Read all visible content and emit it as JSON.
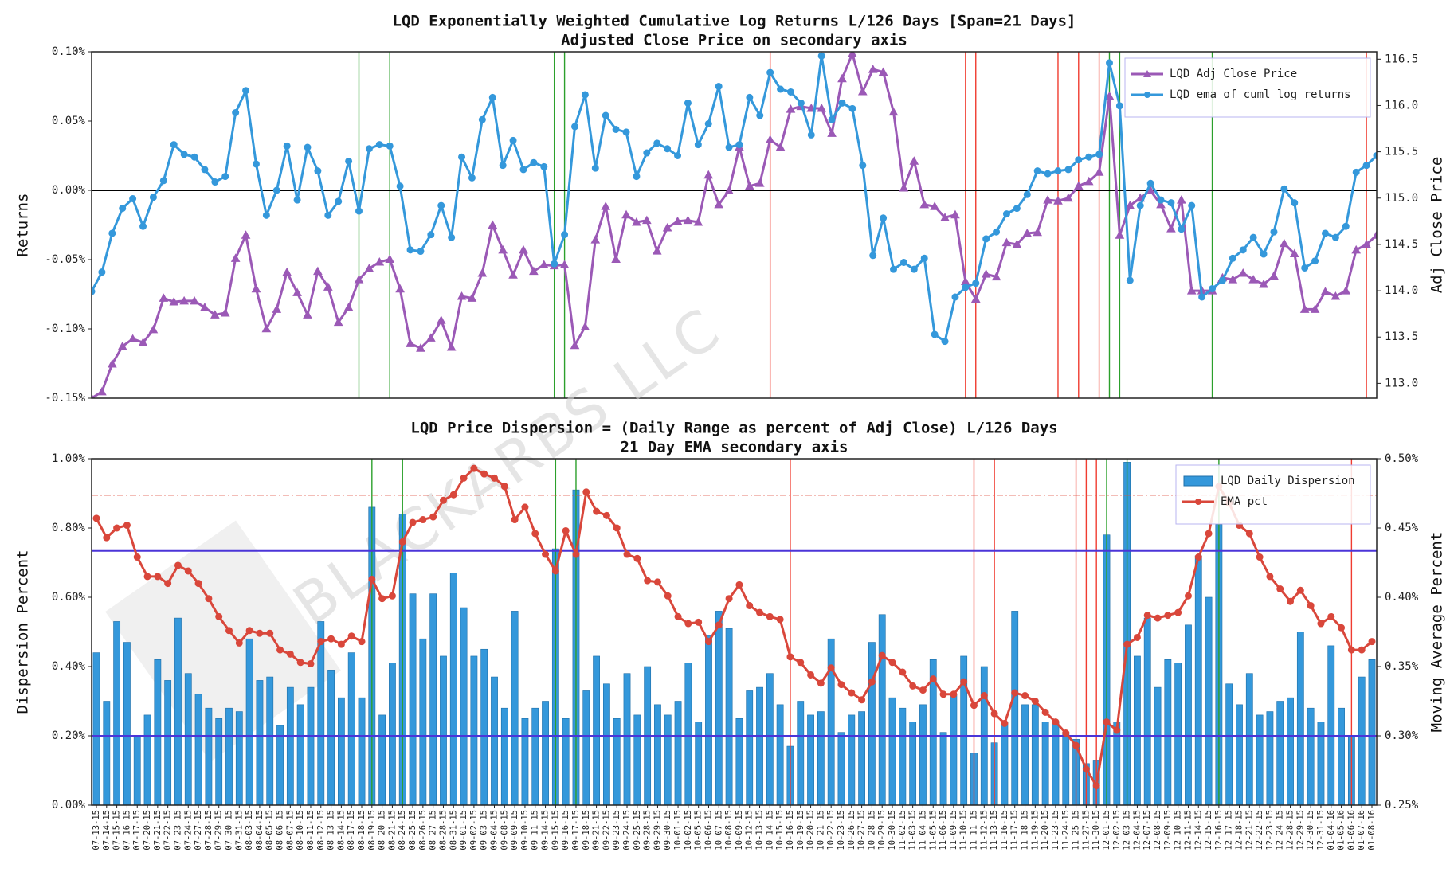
{
  "chart_data": [
    {
      "type": "line",
      "title": "LQD Exponentially Weighted Cumulative Log Returns L/126 Days [Span=21 Days]",
      "subtitle": "Adjusted Close Price on secondary axis",
      "ylabel": "Returns",
      "y2label": "Adj Close Price",
      "ylim": [
        -0.15,
        0.1
      ],
      "yticks": [
        {
          "value": -0.15,
          "label": "-0.15%"
        },
        {
          "value": -0.1,
          "label": "-0.10%"
        },
        {
          "value": -0.05,
          "label": "-0.05%"
        },
        {
          "value": 0,
          "label": "0.00%"
        },
        {
          "value": 0.05,
          "label": "0.05%"
        },
        {
          "value": 0.1,
          "label": "0.10%"
        }
      ],
      "y2lim": [
        112.84,
        116.58
      ],
      "y2ticks": [
        {
          "value": 113,
          "label": "113.0"
        },
        113.5,
        {
          "value": 114,
          "label": "114.0"
        },
        114.5,
        {
          "value": 115,
          "label": "115.0"
        },
        115.5,
        {
          "value": 116,
          "label": "116.0"
        },
        116.5
      ],
      "legend": "upper right",
      "hlines": [
        {
          "value": 0,
          "color": "#000000",
          "axis": "y",
          "style": "solid"
        }
      ],
      "vlines": [
        {
          "color": "#2ca02c",
          "dates": [
            "08-18-15",
            "08-21-15",
            "09-15-15",
            "09-16-15",
            "12-01-15",
            "12-02-15",
            "12-15-15"
          ]
        },
        {
          "color": "#f03c30",
          "dates": [
            "10-14-15",
            "11-10-15",
            "11-11-15",
            "11-23-15",
            "11-25-15",
            "11-30-15",
            "01-07-16"
          ]
        }
      ],
      "series": [
        {
          "name": "LQD Adj Close Price",
          "color": "#9b59b6",
          "kind": "line",
          "marker": "triangle",
          "axis": "y2",
          "values": [
            112.84,
            112.91,
            113.21,
            113.4,
            113.48,
            113.44,
            113.58,
            113.92,
            113.88,
            113.89,
            113.89,
            113.82,
            113.74,
            113.76,
            114.35,
            114.6,
            114.02,
            113.59,
            113.8,
            114.2,
            113.98,
            113.74,
            114.21,
            114.04,
            113.66,
            113.82,
            114.12,
            114.24,
            114.31,
            114.34,
            114.02,
            113.43,
            113.38,
            113.49,
            113.68,
            113.39,
            113.94,
            113.92,
            114.19,
            114.71,
            114.44,
            114.17,
            114.44,
            114.21,
            114.28,
            114.27,
            114.28,
            113.41,
            113.61,
            114.55,
            114.91,
            114.34,
            114.82,
            114.74,
            114.76,
            114.43,
            114.68,
            114.75,
            114.76,
            114.74,
            115.25,
            114.93,
            115.08,
            115.55,
            115.13,
            115.16,
            115.63,
            115.55,
            115.96,
            115.99,
            115.97,
            115.97,
            115.7,
            116.29,
            116.56,
            116.15,
            116.39,
            116.36,
            115.93,
            115.11,
            115.4,
            114.93,
            114.91,
            114.79,
            114.82,
            114.1,
            113.91,
            114.18,
            114.15,
            114.52,
            114.5,
            114.62,
            114.63,
            114.98,
            114.97,
            115.0,
            115.13,
            115.18,
            115.28,
            116.1,
            114.6,
            114.92,
            115.0,
            115.08,
            114.93,
            114.67,
            114.98,
            114.0,
            114.0,
            114.0,
            114.14,
            114.12,
            114.19,
            114.12,
            114.07,
            114.16,
            114.51,
            114.4,
            113.8,
            113.8,
            113.99,
            113.94,
            114.0,
            114.44,
            114.5,
            114.6
          ]
        },
        {
          "name": "LQD ema of cuml log returns",
          "color": "#3498db",
          "kind": "line",
          "marker": "circle",
          "axis": "y",
          "values": [
            -0.073,
            -0.059,
            -0.031,
            -0.013,
            -0.006,
            -0.026,
            -0.005,
            0.007,
            0.033,
            0.026,
            0.024,
            0.015,
            0.006,
            0.01,
            0.056,
            0.072,
            0.019,
            -0.018,
            0.0,
            0.032,
            -0.007,
            0.031,
            0.014,
            -0.018,
            -0.008,
            0.021,
            -0.015,
            0.03,
            0.033,
            0.032,
            0.003,
            -0.043,
            -0.044,
            -0.032,
            -0.011,
            -0.034,
            0.024,
            0.009,
            0.051,
            0.067,
            0.018,
            0.036,
            0.015,
            0.02,
            0.017,
            -0.053,
            -0.032,
            0.046,
            0.069,
            0.016,
            0.054,
            0.044,
            0.042,
            0.01,
            0.027,
            0.034,
            0.03,
            0.025,
            0.063,
            0.033,
            0.048,
            0.075,
            0.031,
            0.033,
            0.067,
            0.054,
            0.085,
            0.073,
            0.071,
            0.063,
            0.04,
            0.097,
            0.051,
            0.063,
            0.059,
            0.018,
            -0.047,
            -0.02,
            -0.057,
            -0.052,
            -0.057,
            -0.049,
            -0.104,
            -0.109,
            -0.077,
            -0.07,
            -0.067,
            -0.035,
            -0.03,
            -0.017,
            -0.013,
            -0.003,
            0.014,
            0.012,
            0.014,
            0.015,
            0.022,
            0.024,
            0.026,
            0.092,
            0.061,
            -0.065,
            -0.011,
            0.005,
            -0.007,
            -0.009,
            -0.028,
            -0.011,
            -0.077,
            -0.071,
            -0.065,
            -0.049,
            -0.043,
            -0.034,
            -0.046,
            -0.03,
            0.001,
            -0.009,
            -0.056,
            -0.051,
            -0.031,
            -0.034,
            -0.026,
            0.013,
            0.018,
            0.025
          ]
        }
      ],
      "watermark": "BLACKARBS LLC"
    },
    {
      "type": "bar",
      "title": "LQD Price Dispersion = (Daily Range as percent of Adj Close) L/126 Days",
      "subtitle": "21 Day EMA secondary axis",
      "ylabel": "Dispersion Percent",
      "y2label": "Moving Average Percent",
      "ylim": [
        0,
        1.0
      ],
      "yticks": [
        {
          "value": 0,
          "label": "0.00%"
        },
        {
          "value": 0.2,
          "label": "0.20%"
        },
        {
          "value": 0.4,
          "label": "0.40%"
        },
        {
          "value": 0.6,
          "label": "0.60%"
        },
        {
          "value": 0.8,
          "label": "0.80%"
        },
        {
          "value": 1.0,
          "label": "1.00%"
        }
      ],
      "y2lim": [
        0.25,
        0.5
      ],
      "y2ticks": [
        {
          "value": 0.25,
          "label": "0.25%"
        },
        {
          "value": 0.3,
          "label": "0.30%"
        },
        {
          "value": 0.35,
          "label": "0.35%"
        },
        {
          "value": 0.4,
          "label": "0.40%"
        },
        {
          "value": 0.45,
          "label": "0.45%"
        },
        {
          "value": 0.5,
          "label": "0.50%"
        }
      ],
      "legend": "upper right",
      "hlines": [
        {
          "value": 0.734,
          "color": "#4b35d8",
          "axis": "y",
          "style": "solid"
        },
        {
          "value": 0.2,
          "color": "#4b35d8",
          "axis": "y",
          "style": "solid"
        },
        {
          "value": 0.895,
          "color": "#e05040",
          "axis": "y",
          "style": "dashdot"
        }
      ],
      "vlines": [
        {
          "color": "#2ca02c",
          "dates": [
            "08-19-15",
            "08-24-15",
            "09-15-15",
            "09-17-15",
            "12-01-15",
            "12-03-15",
            "12-16-15"
          ]
        },
        {
          "color": "#f03c30",
          "dates": [
            "10-16-15",
            "11-11-15",
            "11-13-15",
            "11-25-15",
            "11-27-15",
            "11-30-15",
            "01-06-16"
          ]
        }
      ],
      "categories": [
        "07-13-15",
        "07-14-15",
        "07-15-15",
        "07-16-15",
        "07-17-15",
        "07-20-15",
        "07-21-15",
        "07-22-15",
        "07-23-15",
        "07-24-15",
        "07-27-15",
        "07-28-15",
        "07-29-15",
        "07-30-15",
        "07-31-15",
        "08-03-15",
        "08-04-15",
        "08-05-15",
        "08-06-15",
        "08-07-15",
        "08-10-15",
        "08-11-15",
        "08-12-15",
        "08-13-15",
        "08-14-15",
        "08-17-15",
        "08-18-15",
        "08-19-15",
        "08-20-15",
        "08-21-15",
        "08-24-15",
        "08-25-15",
        "08-26-15",
        "08-27-15",
        "08-28-15",
        "08-31-15",
        "09-01-15",
        "09-02-15",
        "09-03-15",
        "09-04-15",
        "09-08-15",
        "09-09-15",
        "09-10-15",
        "09-11-15",
        "09-14-15",
        "09-15-15",
        "09-16-15",
        "09-17-15",
        "09-18-15",
        "09-21-15",
        "09-22-15",
        "09-23-15",
        "09-24-15",
        "09-25-15",
        "09-28-15",
        "09-29-15",
        "09-30-15",
        "10-01-15",
        "10-02-15",
        "10-05-15",
        "10-06-15",
        "10-07-15",
        "10-08-15",
        "10-09-15",
        "10-12-15",
        "10-13-15",
        "10-14-15",
        "10-15-15",
        "10-16-15",
        "10-19-15",
        "10-20-15",
        "10-21-15",
        "10-22-15",
        "10-23-15",
        "10-26-15",
        "10-27-15",
        "10-28-15",
        "10-29-15",
        "10-30-15",
        "11-02-15",
        "11-03-15",
        "11-04-15",
        "11-05-15",
        "11-06-15",
        "11-09-15",
        "11-10-15",
        "11-11-15",
        "11-12-15",
        "11-13-15",
        "11-16-15",
        "11-17-15",
        "11-18-15",
        "11-19-15",
        "11-20-15",
        "11-23-15",
        "11-24-15",
        "11-25-15",
        "11-27-15",
        "11-30-15",
        "12-01-15",
        "12-02-15",
        "12-03-15",
        "12-04-15",
        "12-07-15",
        "12-08-15",
        "12-09-15",
        "12-10-15",
        "12-11-15",
        "12-14-15",
        "12-15-15",
        "12-16-15",
        "12-17-15",
        "12-18-15",
        "12-21-15",
        "12-22-15",
        "12-23-15",
        "12-24-15",
        "12-28-15",
        "12-29-15",
        "12-30-15",
        "12-31-15",
        "01-04-16",
        "01-05-16",
        "01-06-16",
        "01-07-16",
        "01-08-16"
      ],
      "series": [
        {
          "name": "LQD Daily Dispersion",
          "color": "#3498db",
          "kind": "bar",
          "axis": "y",
          "values": [
            0.44,
            0.3,
            0.53,
            0.47,
            0.2,
            0.26,
            0.42,
            0.36,
            0.54,
            0.38,
            0.32,
            0.28,
            0.25,
            0.28,
            0.27,
            0.48,
            0.36,
            0.37,
            0.23,
            0.34,
            0.29,
            0.34,
            0.53,
            0.39,
            0.31,
            0.44,
            0.31,
            0.86,
            0.26,
            0.41,
            0.84,
            0.61,
            0.48,
            0.61,
            0.43,
            0.67,
            0.57,
            0.43,
            0.45,
            0.37,
            0.28,
            0.56,
            0.25,
            0.28,
            0.3,
            0.74,
            0.25,
            0.91,
            0.33,
            0.43,
            0.35,
            0.25,
            0.38,
            0.26,
            0.4,
            0.29,
            0.26,
            0.3,
            0.41,
            0.24,
            0.49,
            0.56,
            0.51,
            0.25,
            0.33,
            0.34,
            0.38,
            0.29,
            0.17,
            0.3,
            0.26,
            0.27,
            0.48,
            0.21,
            0.26,
            0.27,
            0.47,
            0.55,
            0.31,
            0.28,
            0.24,
            0.29,
            0.42,
            0.21,
            0.32,
            0.43,
            0.15,
            0.4,
            0.18,
            0.24,
            0.56,
            0.29,
            0.29,
            0.24,
            0.24,
            0.21,
            0.19,
            0.12,
            0.13,
            0.78,
            0.24,
            0.99,
            0.43,
            0.54,
            0.34,
            0.42,
            0.41,
            0.52,
            0.72,
            0.6,
            0.81,
            0.35,
            0.29,
            0.38,
            0.26,
            0.27,
            0.3,
            0.31,
            0.5,
            0.28,
            0.24,
            0.46,
            0.28,
            0.2,
            0.37,
            0.42
          ]
        },
        {
          "name": "EMA pct",
          "color": "#d9473b",
          "kind": "line",
          "marker": "circle",
          "axis": "y2",
          "values": [
            0.457,
            0.443,
            0.45,
            0.452,
            0.429,
            0.415,
            0.415,
            0.41,
            0.423,
            0.419,
            0.41,
            0.399,
            0.386,
            0.376,
            0.367,
            0.376,
            0.374,
            0.374,
            0.362,
            0.359,
            0.353,
            0.352,
            0.368,
            0.37,
            0.366,
            0.372,
            0.368,
            0.413,
            0.399,
            0.401,
            0.44,
            0.454,
            0.456,
            0.458,
            0.47,
            0.474,
            0.486,
            0.493,
            0.489,
            0.486,
            0.48,
            0.456,
            0.465,
            0.446,
            0.431,
            0.419,
            0.448,
            0.431,
            0.476,
            0.462,
            0.459,
            0.45,
            0.431,
            0.428,
            0.412,
            0.411,
            0.401,
            0.386,
            0.381,
            0.382,
            0.368,
            0.38,
            0.399,
            0.409,
            0.394,
            0.389,
            0.386,
            0.384,
            0.357,
            0.353,
            0.344,
            0.338,
            0.349,
            0.337,
            0.331,
            0.326,
            0.339,
            0.358,
            0.353,
            0.346,
            0.336,
            0.333,
            0.341,
            0.33,
            0.33,
            0.339,
            0.322,
            0.329,
            0.316,
            0.309,
            0.331,
            0.329,
            0.325,
            0.317,
            0.31,
            0.302,
            0.293,
            0.276,
            0.264,
            0.31,
            0.304,
            0.366,
            0.371,
            0.387,
            0.385,
            0.387,
            0.389,
            0.401,
            0.429,
            0.446,
            0.48,
            0.468,
            0.452,
            0.446,
            0.429,
            0.415,
            0.406,
            0.397,
            0.405,
            0.394,
            0.381,
            0.386,
            0.378,
            0.362,
            0.362,
            0.368
          ]
        }
      ]
    }
  ]
}
